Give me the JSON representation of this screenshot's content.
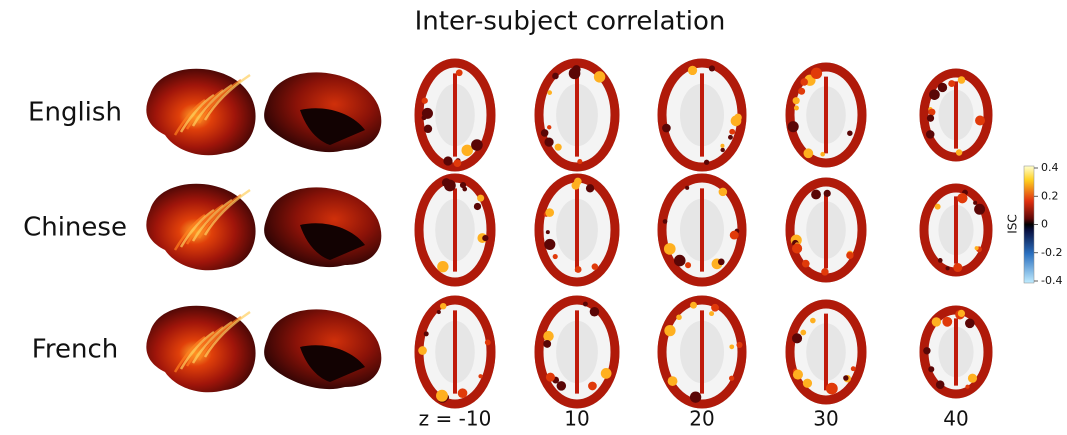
{
  "title": "Inter-subject correlation",
  "rows": [
    "English",
    "Chinese",
    "French"
  ],
  "slice_labels": [
    "z = -10",
    "10",
    "20",
    "30",
    "40"
  ],
  "colorbar": {
    "label": "ISC",
    "ticks": [
      0.4,
      0.2,
      0,
      -0.2,
      -0.4
    ]
  }
}
